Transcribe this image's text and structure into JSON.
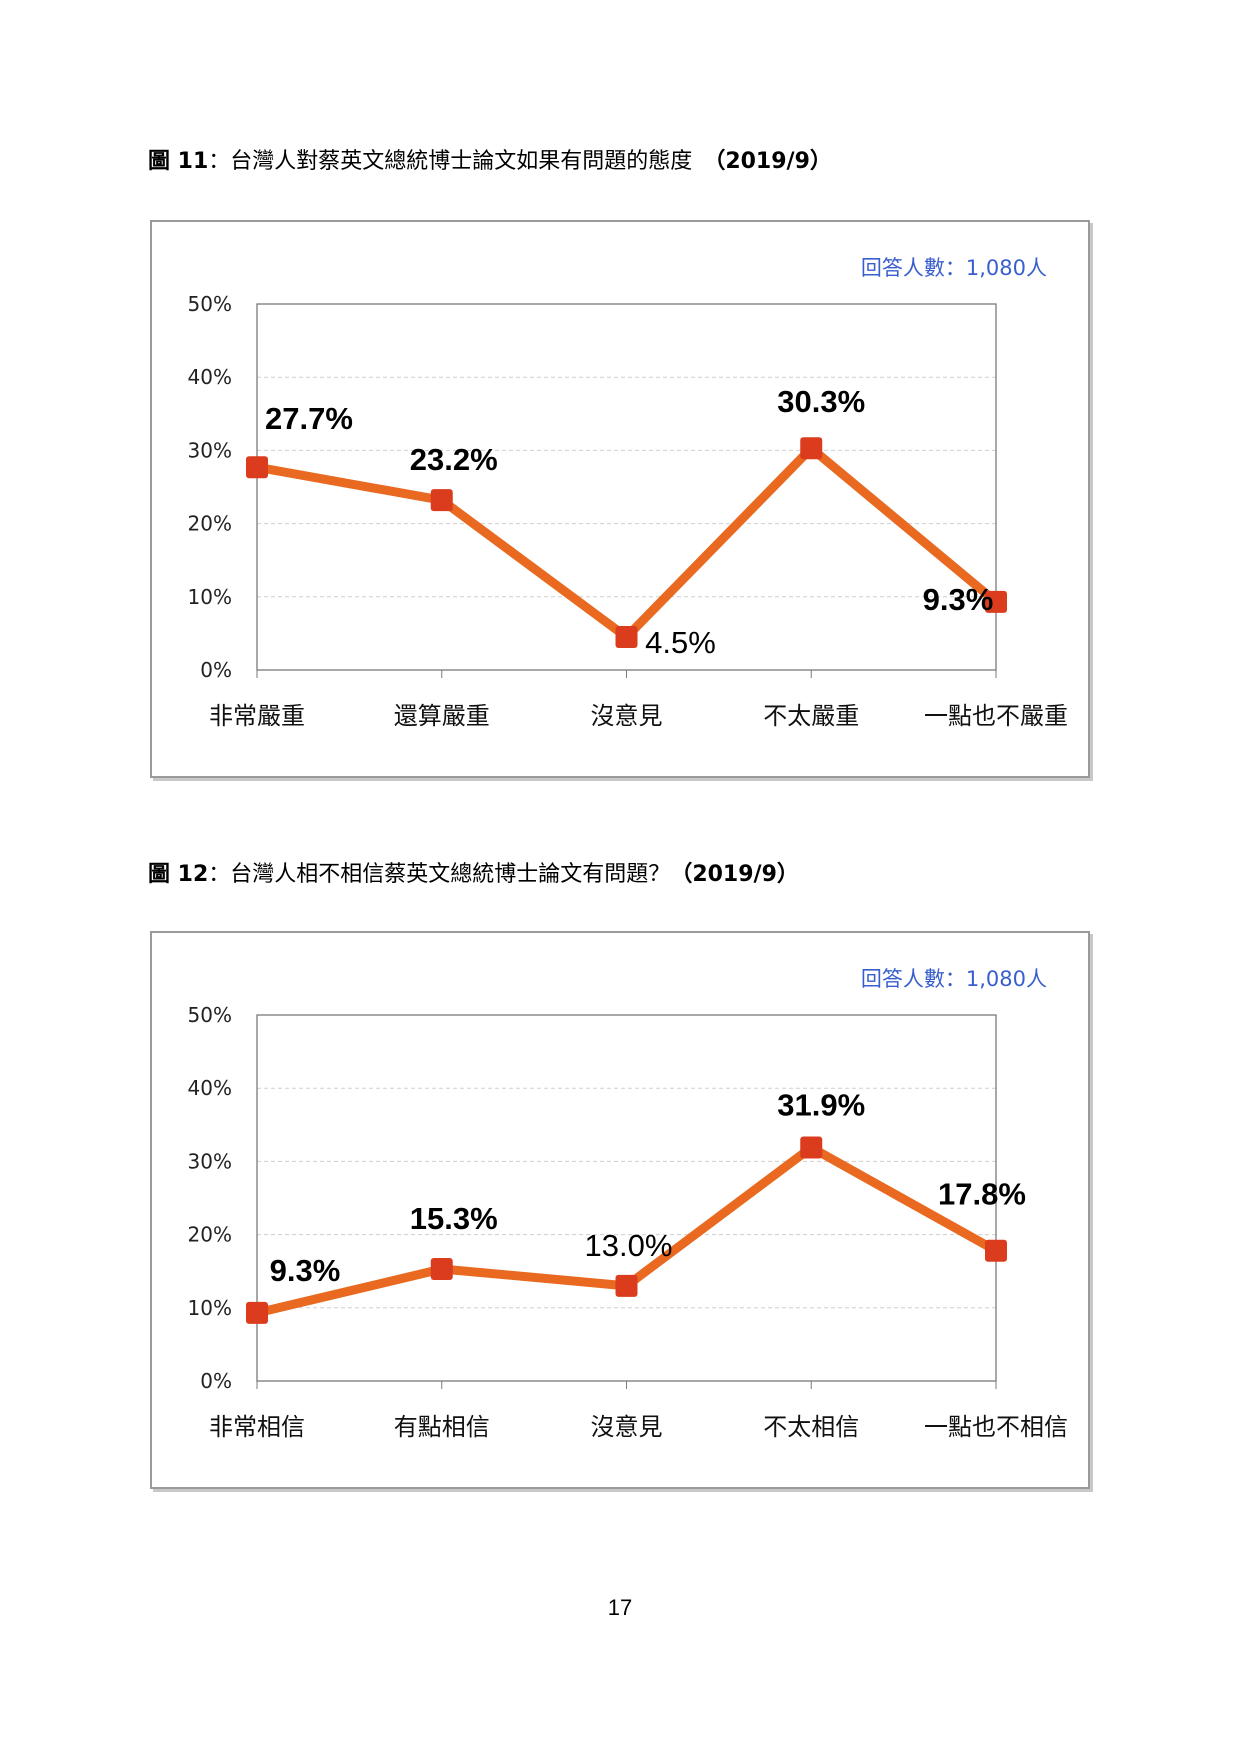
{
  "captions": [
    {
      "number": "圖 11",
      "colon": "：",
      "text": "台灣人對蔡英文總統博士論文如果有問題的態度",
      "date": "　（2019/9）"
    },
    {
      "number": "圖 12",
      "colon": "：",
      "text": "台灣人相不相信蔡英文總統博士論文有問題？",
      "date": "（2019/9）"
    }
  ],
  "page_number": "17",
  "colors": {
    "line": "#e8691f",
    "marker": "#dc3c1e",
    "respondents": "#3a5fcd",
    "frame": "#9a9a9a"
  },
  "chart_data": [
    {
      "type": "line",
      "title": "",
      "categories": [
        "非常嚴重",
        "還算嚴重",
        "沒意見",
        "不太嚴重",
        "一點也不嚴重"
      ],
      "values": [
        27.7,
        23.2,
        4.5,
        30.3,
        9.3
      ],
      "data_labels": [
        "27.7%",
        "23.2%",
        "4.5%",
        "30.3%",
        "9.3%"
      ],
      "data_label_bold": [
        true,
        true,
        false,
        true,
        true
      ],
      "ylim": [
        0,
        50
      ],
      "yticks": [
        0,
        10,
        20,
        30,
        40,
        50
      ],
      "ytick_labels": [
        "0%",
        "10%",
        "20%",
        "30%",
        "40%",
        "50%"
      ],
      "grid": true,
      "annotation": "回答人數：1,080人"
    },
    {
      "type": "line",
      "title": "",
      "categories": [
        "非常相信",
        "有點相信",
        "沒意見",
        "不太相信",
        "一點也不相信"
      ],
      "values": [
        9.3,
        15.3,
        13.0,
        31.9,
        17.8
      ],
      "data_labels": [
        "9.3%",
        "15.3%",
        "13.0%",
        "31.9%",
        "17.8%"
      ],
      "data_label_bold": [
        true,
        true,
        false,
        true,
        true
      ],
      "ylim": [
        0,
        50
      ],
      "yticks": [
        0,
        10,
        20,
        30,
        40,
        50
      ],
      "ytick_labels": [
        "0%",
        "10%",
        "20%",
        "30%",
        "40%",
        "50%"
      ],
      "grid": true,
      "annotation": "回答人數：1,080人"
    }
  ]
}
